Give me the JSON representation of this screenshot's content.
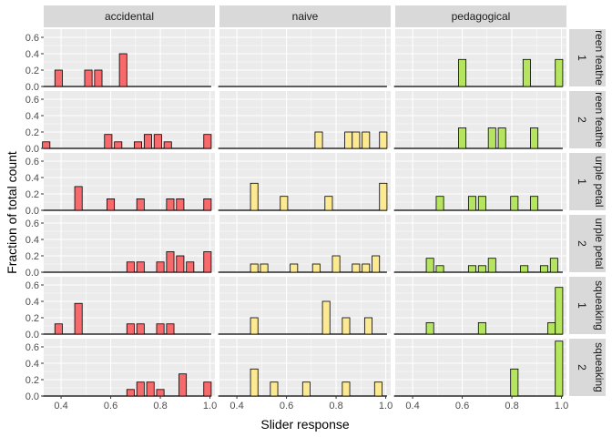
{
  "chart_data": {
    "type": "bar",
    "title": "",
    "xlabel": "Slider response",
    "ylabel": "Fraction of total count",
    "xlim": [
      0.33,
      1.02
    ],
    "ylim": [
      0,
      0.7
    ],
    "xticks": [
      0.4,
      0.6,
      0.8,
      1.0
    ],
    "xtick_labels": [
      "0.4",
      "0.6",
      "0.8",
      "1.0"
    ],
    "yticks": [
      0.0,
      0.2,
      0.4,
      0.6
    ],
    "ytick_labels": [
      "0.0",
      "0.2",
      "0.4",
      "0.6"
    ],
    "bin_width": 0.03,
    "columns": [
      "accidental",
      "naive",
      "pedagogical"
    ],
    "column_colors": [
      "#f8696b",
      "#fde992",
      "#b5e55e"
    ],
    "rows": [
      {
        "label": "green feathers",
        "display": "reen feathe",
        "level": "1"
      },
      {
        "label": "green feathers",
        "display": "reen feathe",
        "level": "2"
      },
      {
        "label": "purple petals",
        "display": "urple petal",
        "level": "1"
      },
      {
        "label": "purple petals",
        "display": "urple petal",
        "level": "2"
      },
      {
        "label": "squeaking",
        "display": "squeaking",
        "level": "1"
      },
      {
        "label": "squeaking",
        "display": "squeaking",
        "level": "2"
      }
    ],
    "panels": [
      [
        {
          "bins": [
            0.39,
            0.51,
            0.55,
            0.65
          ],
          "values": [
            0.2,
            0.2,
            0.2,
            0.4
          ]
        },
        {
          "bins": [],
          "values": []
        },
        {
          "bins": [
            0.6,
            0.86,
            0.99
          ],
          "values": [
            0.33,
            0.33,
            0.33
          ]
        }
      ],
      [
        {
          "bins": [
            0.34,
            0.59,
            0.63,
            0.71,
            0.75,
            0.79,
            0.83,
            0.99
          ],
          "values": [
            0.08,
            0.17,
            0.08,
            0.08,
            0.17,
            0.17,
            0.08,
            0.17
          ]
        },
        {
          "bins": [
            0.73,
            0.85,
            0.88,
            0.92,
            0.99
          ],
          "values": [
            0.2,
            0.2,
            0.2,
            0.2,
            0.2
          ]
        },
        {
          "bins": [
            0.6,
            0.72,
            0.76,
            0.89
          ],
          "values": [
            0.25,
            0.25,
            0.25,
            0.25
          ]
        }
      ],
      [
        {
          "bins": [
            0.47,
            0.6,
            0.72,
            0.84,
            0.88,
            0.99
          ],
          "values": [
            0.29,
            0.14,
            0.14,
            0.14,
            0.14,
            0.14
          ]
        },
        {
          "bins": [
            0.47,
            0.59,
            0.77,
            0.99
          ],
          "values": [
            0.33,
            0.17,
            0.17,
            0.33
          ]
        },
        {
          "bins": [
            0.51,
            0.64,
            0.68,
            0.81,
            0.89
          ],
          "values": [
            0.17,
            0.17,
            0.17,
            0.17,
            0.17
          ]
        }
      ],
      [
        {
          "bins": [
            0.68,
            0.72,
            0.8,
            0.84,
            0.88,
            0.92,
            0.99
          ],
          "values": [
            0.125,
            0.125,
            0.125,
            0.25,
            0.2,
            0.125,
            0.25
          ]
        },
        {
          "bins": [
            0.47,
            0.51,
            0.63,
            0.72,
            0.8,
            0.88,
            0.92,
            0.96
          ],
          "values": [
            0.1,
            0.1,
            0.1,
            0.1,
            0.2,
            0.1,
            0.1,
            0.2
          ]
        },
        {
          "bins": [
            0.47,
            0.51,
            0.64,
            0.68,
            0.72,
            0.85,
            0.93,
            0.97
          ],
          "values": [
            0.17,
            0.08,
            0.08,
            0.08,
            0.17,
            0.08,
            0.08,
            0.17
          ]
        }
      ],
      [
        {
          "bins": [
            0.39,
            0.47,
            0.68,
            0.72,
            0.8,
            0.84
          ],
          "values": [
            0.125,
            0.375,
            0.125,
            0.125,
            0.125,
            0.125
          ]
        },
        {
          "bins": [
            0.47,
            0.76,
            0.84,
            0.93
          ],
          "values": [
            0.2,
            0.4,
            0.2,
            0.2
          ]
        },
        {
          "bins": [
            0.47,
            0.68,
            0.96,
            0.99
          ],
          "values": [
            0.14,
            0.14,
            0.14,
            0.57
          ]
        }
      ],
      [
        {
          "bins": [
            0.68,
            0.72,
            0.76,
            0.8,
            0.89,
            0.99
          ],
          "values": [
            0.08,
            0.17,
            0.17,
            0.08,
            0.27,
            0.17
          ]
        },
        {
          "bins": [
            0.47,
            0.55,
            0.68,
            0.84,
            0.97
          ],
          "values": [
            0.33,
            0.17,
            0.17,
            0.17,
            0.17
          ]
        },
        {
          "bins": [
            0.81,
            0.99
          ],
          "values": [
            0.33,
            0.67
          ]
        }
      ]
    ]
  }
}
